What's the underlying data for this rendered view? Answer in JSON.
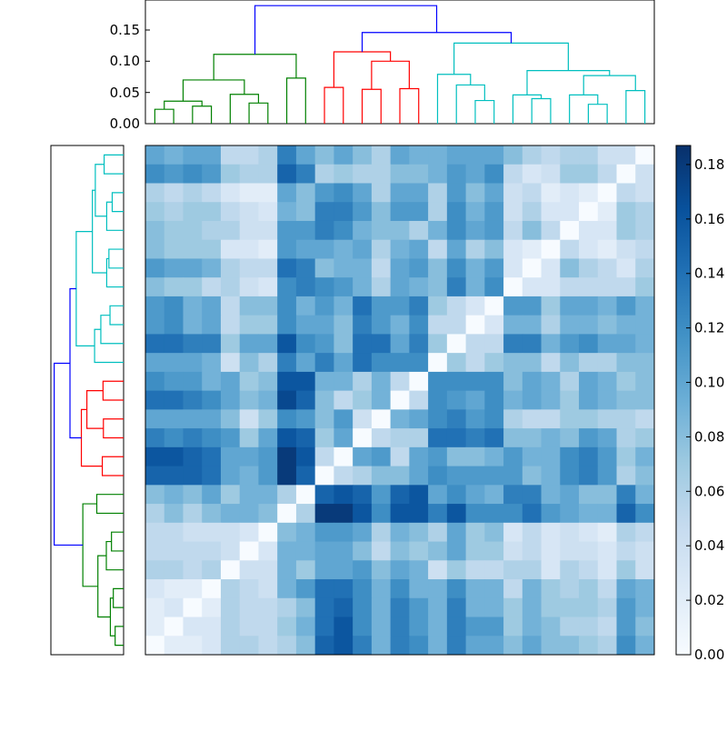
{
  "chart_data": {
    "type": "heatmap",
    "title": "",
    "colormap": [
      "#f7fbff",
      "#deebf7",
      "#c6dbef",
      "#9ecae1",
      "#6baed6",
      "#4292c6",
      "#2171b5",
      "#08519c",
      "#08306b"
    ],
    "vmin": 0.0,
    "vmax": 0.187,
    "colorbar_ticks": [
      "0.00",
      "0.02",
      "0.04",
      "0.06",
      "0.08",
      "0.10",
      "0.12",
      "0.14",
      "0.16",
      "0.18"
    ],
    "dendrogram_ticks": [
      "0.00",
      "0.05",
      "0.10",
      "0.15"
    ],
    "dendrogram_ylim": [
      0,
      0.198
    ],
    "cluster_colors": {
      "g": "#008000",
      "r": "#ff0000",
      "c": "#00bfbf",
      "b": "#0000ff"
    },
    "linkage": [
      [
        0,
        1,
        0.023,
        "g"
      ],
      [
        2,
        3,
        0.028,
        "g"
      ],
      [
        27,
        28,
        0.036,
        "g"
      ],
      [
        5,
        6,
        0.033,
        "g"
      ],
      [
        4,
        30,
        0.047,
        "g"
      ],
      [
        29,
        31,
        0.07,
        "g"
      ],
      [
        7,
        8,
        0.073,
        "g"
      ],
      [
        32,
        33,
        0.111,
        "g"
      ],
      [
        9,
        10,
        0.058,
        "r"
      ],
      [
        11,
        12,
        0.055,
        "r"
      ],
      [
        13,
        14,
        0.056,
        "r"
      ],
      [
        36,
        37,
        0.1,
        "r"
      ],
      [
        35,
        38,
        0.115,
        "r"
      ],
      [
        17,
        18,
        0.037,
        "c"
      ],
      [
        16,
        40,
        0.062,
        "c"
      ],
      [
        15,
        41,
        0.079,
        "c"
      ],
      [
        20,
        21,
        0.04,
        "c"
      ],
      [
        19,
        43,
        0.046,
        "c"
      ],
      [
        23,
        24,
        0.031,
        "c"
      ],
      [
        22,
        45,
        0.046,
        "c"
      ],
      [
        25,
        26,
        0.053,
        "c"
      ],
      [
        46,
        47,
        0.077,
        "c"
      ],
      [
        44,
        48,
        0.085,
        "c"
      ],
      [
        42,
        49,
        0.129,
        "c"
      ],
      [
        39,
        50,
        0.146,
        "b"
      ],
      [
        34,
        51,
        0.189,
        "b"
      ]
    ],
    "matrix": [
      [
        0.1,
        0.09,
        0.1,
        0.1,
        0.05,
        0.05,
        0.06,
        0.13,
        0.1,
        0.08,
        0.1,
        0.08,
        0.06,
        0.1,
        0.09,
        0.09,
        0.1,
        0.1,
        0.1,
        0.08,
        0.06,
        0.05,
        0.06,
        0.06,
        0.04,
        0.04,
        0.0
      ],
      [
        0.12,
        0.11,
        0.12,
        0.11,
        0.07,
        0.06,
        0.06,
        0.15,
        0.13,
        0.06,
        0.07,
        0.06,
        0.06,
        0.08,
        0.08,
        0.09,
        0.11,
        0.1,
        0.12,
        0.05,
        0.03,
        0.04,
        0.07,
        0.07,
        0.05,
        0.0,
        0.04
      ],
      [
        0.06,
        0.05,
        0.06,
        0.05,
        0.03,
        0.02,
        0.02,
        0.1,
        0.08,
        0.11,
        0.12,
        0.1,
        0.06,
        0.1,
        0.1,
        0.06,
        0.11,
        0.08,
        0.1,
        0.04,
        0.05,
        0.02,
        0.03,
        0.02,
        0.0,
        0.05,
        0.04
      ],
      [
        0.07,
        0.06,
        0.07,
        0.07,
        0.05,
        0.04,
        0.03,
        0.09,
        0.08,
        0.13,
        0.13,
        0.11,
        0.08,
        0.11,
        0.11,
        0.06,
        0.12,
        0.09,
        0.11,
        0.04,
        0.06,
        0.03,
        0.03,
        0.0,
        0.02,
        0.07,
        0.06
      ],
      [
        0.08,
        0.07,
        0.07,
        0.06,
        0.06,
        0.04,
        0.04,
        0.11,
        0.11,
        0.13,
        0.12,
        0.09,
        0.08,
        0.08,
        0.06,
        0.09,
        0.12,
        0.1,
        0.11,
        0.05,
        0.08,
        0.05,
        0.0,
        0.03,
        0.03,
        0.07,
        0.06
      ],
      [
        0.08,
        0.07,
        0.07,
        0.07,
        0.03,
        0.03,
        0.02,
        0.11,
        0.1,
        0.1,
        0.09,
        0.1,
        0.06,
        0.09,
        0.1,
        0.05,
        0.1,
        0.06,
        0.08,
        0.03,
        0.02,
        0.0,
        0.05,
        0.03,
        0.02,
        0.04,
        0.05
      ],
      [
        0.11,
        0.1,
        0.1,
        0.09,
        0.06,
        0.05,
        0.05,
        0.14,
        0.13,
        0.08,
        0.09,
        0.09,
        0.05,
        0.1,
        0.11,
        0.08,
        0.12,
        0.09,
        0.11,
        0.03,
        0.0,
        0.03,
        0.08,
        0.06,
        0.05,
        0.03,
        0.06
      ],
      [
        0.08,
        0.07,
        0.07,
        0.05,
        0.06,
        0.04,
        0.03,
        0.12,
        0.13,
        0.12,
        0.11,
        0.09,
        0.06,
        0.1,
        0.09,
        0.08,
        0.13,
        0.09,
        0.12,
        0.0,
        0.03,
        0.03,
        0.05,
        0.05,
        0.05,
        0.05,
        0.07
      ],
      [
        0.11,
        0.12,
        0.09,
        0.1,
        0.05,
        0.08,
        0.08,
        0.12,
        0.09,
        0.11,
        0.09,
        0.14,
        0.11,
        0.11,
        0.13,
        0.07,
        0.05,
        0.03,
        0.0,
        0.11,
        0.11,
        0.07,
        0.1,
        0.1,
        0.09,
        0.11,
        0.09
      ],
      [
        0.11,
        0.12,
        0.09,
        0.1,
        0.05,
        0.07,
        0.07,
        0.12,
        0.1,
        0.1,
        0.08,
        0.13,
        0.11,
        0.09,
        0.12,
        0.05,
        0.05,
        0.0,
        0.03,
        0.09,
        0.09,
        0.06,
        0.09,
        0.09,
        0.08,
        0.09,
        0.09
      ],
      [
        0.14,
        0.14,
        0.13,
        0.13,
        0.07,
        0.1,
        0.1,
        0.16,
        0.12,
        0.11,
        0.08,
        0.14,
        0.14,
        0.1,
        0.13,
        0.07,
        0.0,
        0.05,
        0.05,
        0.13,
        0.13,
        0.09,
        0.11,
        0.12,
        0.1,
        0.1,
        0.09
      ],
      [
        0.1,
        0.1,
        0.1,
        0.09,
        0.04,
        0.08,
        0.06,
        0.13,
        0.1,
        0.13,
        0.1,
        0.14,
        0.12,
        0.12,
        0.12,
        0.0,
        0.07,
        0.05,
        0.07,
        0.08,
        0.08,
        0.05,
        0.08,
        0.06,
        0.06,
        0.08,
        0.08
      ],
      [
        0.12,
        0.11,
        0.11,
        0.09,
        0.1,
        0.07,
        0.08,
        0.16,
        0.16,
        0.09,
        0.09,
        0.06,
        0.09,
        0.05,
        0.0,
        0.12,
        0.12,
        0.12,
        0.12,
        0.08,
        0.1,
        0.09,
        0.06,
        0.1,
        0.09,
        0.07,
        0.08
      ],
      [
        0.14,
        0.14,
        0.13,
        0.12,
        0.1,
        0.08,
        0.09,
        0.17,
        0.15,
        0.08,
        0.05,
        0.07,
        0.09,
        0.0,
        0.05,
        0.12,
        0.11,
        0.1,
        0.12,
        0.09,
        0.1,
        0.09,
        0.07,
        0.1,
        0.09,
        0.08,
        0.08
      ],
      [
        0.1,
        0.1,
        0.1,
        0.1,
        0.08,
        0.04,
        0.07,
        0.12,
        0.11,
        0.08,
        0.11,
        0.04,
        0.0,
        0.09,
        0.1,
        0.12,
        0.13,
        0.11,
        0.12,
        0.06,
        0.05,
        0.05,
        0.07,
        0.07,
        0.06,
        0.06,
        0.05
      ],
      [
        0.13,
        0.12,
        0.13,
        0.12,
        0.11,
        0.07,
        0.1,
        0.16,
        0.15,
        0.07,
        0.1,
        0.0,
        0.05,
        0.06,
        0.06,
        0.14,
        0.14,
        0.13,
        0.14,
        0.08,
        0.08,
        0.09,
        0.08,
        0.11,
        0.1,
        0.06,
        0.07
      ],
      [
        0.16,
        0.16,
        0.15,
        0.14,
        0.1,
        0.1,
        0.11,
        0.18,
        0.16,
        0.05,
        0.0,
        0.1,
        0.11,
        0.05,
        0.1,
        0.11,
        0.08,
        0.08,
        0.09,
        0.11,
        0.09,
        0.09,
        0.12,
        0.13,
        0.11,
        0.07,
        0.09
      ],
      [
        0.15,
        0.15,
        0.15,
        0.14,
        0.1,
        0.09,
        0.11,
        0.18,
        0.15,
        0.0,
        0.05,
        0.06,
        0.08,
        0.08,
        0.1,
        0.12,
        0.11,
        0.11,
        0.11,
        0.11,
        0.08,
        0.09,
        0.12,
        0.13,
        0.11,
        0.06,
        0.08
      ],
      [
        0.08,
        0.09,
        0.08,
        0.1,
        0.07,
        0.09,
        0.09,
        0.06,
        0.0,
        0.15,
        0.16,
        0.15,
        0.11,
        0.15,
        0.16,
        0.1,
        0.12,
        0.1,
        0.09,
        0.13,
        0.13,
        0.09,
        0.1,
        0.08,
        0.08,
        0.13,
        0.09
      ],
      [
        0.06,
        0.08,
        0.06,
        0.08,
        0.09,
        0.09,
        0.08,
        0.0,
        0.06,
        0.18,
        0.18,
        0.16,
        0.12,
        0.16,
        0.16,
        0.13,
        0.16,
        0.12,
        0.12,
        0.12,
        0.14,
        0.11,
        0.1,
        0.09,
        0.09,
        0.15,
        0.12
      ],
      [
        0.05,
        0.05,
        0.04,
        0.04,
        0.04,
        0.03,
        0.0,
        0.08,
        0.09,
        0.11,
        0.11,
        0.1,
        0.06,
        0.09,
        0.08,
        0.06,
        0.1,
        0.07,
        0.08,
        0.03,
        0.05,
        0.03,
        0.04,
        0.03,
        0.02,
        0.06,
        0.05
      ],
      [
        0.05,
        0.05,
        0.05,
        0.05,
        0.04,
        0.0,
        0.03,
        0.09,
        0.09,
        0.1,
        0.1,
        0.08,
        0.05,
        0.08,
        0.07,
        0.08,
        0.1,
        0.07,
        0.07,
        0.04,
        0.05,
        0.03,
        0.04,
        0.04,
        0.03,
        0.05,
        0.04
      ],
      [
        0.06,
        0.06,
        0.05,
        0.06,
        0.0,
        0.04,
        0.04,
        0.09,
        0.07,
        0.1,
        0.1,
        0.11,
        0.08,
        0.1,
        0.09,
        0.04,
        0.07,
        0.05,
        0.05,
        0.06,
        0.06,
        0.03,
        0.06,
        0.05,
        0.03,
        0.07,
        0.04
      ],
      [
        0.03,
        0.02,
        0.02,
        0.0,
        0.06,
        0.05,
        0.04,
        0.09,
        0.11,
        0.14,
        0.14,
        0.12,
        0.09,
        0.12,
        0.09,
        0.09,
        0.12,
        0.09,
        0.09,
        0.05,
        0.09,
        0.07,
        0.06,
        0.07,
        0.05,
        0.1,
        0.09
      ],
      [
        0.02,
        0.03,
        0.0,
        0.02,
        0.06,
        0.05,
        0.05,
        0.06,
        0.08,
        0.14,
        0.15,
        0.12,
        0.09,
        0.13,
        0.11,
        0.09,
        0.13,
        0.09,
        0.09,
        0.07,
        0.09,
        0.07,
        0.07,
        0.07,
        0.06,
        0.11,
        0.09
      ],
      [
        0.02,
        0.0,
        0.03,
        0.03,
        0.06,
        0.05,
        0.05,
        0.07,
        0.09,
        0.14,
        0.16,
        0.12,
        0.09,
        0.13,
        0.11,
        0.09,
        0.13,
        0.11,
        0.11,
        0.07,
        0.09,
        0.08,
        0.06,
        0.06,
        0.05,
        0.11,
        0.08
      ],
      [
        0.0,
        0.02,
        0.02,
        0.03,
        0.06,
        0.06,
        0.05,
        0.06,
        0.08,
        0.15,
        0.16,
        0.13,
        0.09,
        0.13,
        0.12,
        0.09,
        0.13,
        0.1,
        0.1,
        0.08,
        0.1,
        0.08,
        0.08,
        0.07,
        0.06,
        0.12,
        0.09
      ]
    ]
  }
}
